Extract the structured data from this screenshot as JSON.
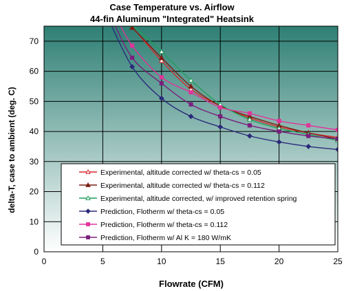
{
  "chart_data": {
    "type": "line",
    "title": "Case Temperature vs. Airflow",
    "subtitle": "44-fin Aluminum \"Integrated\" Heatsink",
    "xlabel": "Flowrate (CFM)",
    "ylabel": "delta-T, case to ambient (deg. C)",
    "xlim": [
      0,
      25
    ],
    "ylim": [
      0,
      75
    ],
    "xticks": [
      "0",
      "5",
      "10",
      "15",
      "20",
      "25"
    ],
    "yticks": [
      "0",
      "10",
      "20",
      "30",
      "40",
      "50",
      "60",
      "70"
    ],
    "grid": true,
    "legend_position": "bottom-center",
    "plot_colors": {
      "top": "#2e7f74",
      "bottom": "#ffffff",
      "grid": "#000000"
    },
    "series": [
      {
        "name": "Experimental, altitude corrected w/ theta-cs   = 0.05",
        "color": "#d9262b",
        "marker": "triangle-open",
        "x": [
          5.8,
          7.5,
          10,
          12.5,
          15,
          17.5,
          20,
          22.5,
          25
        ],
        "y": [
          79,
          74.5,
          63.5,
          54,
          48.5,
          44.5,
          41.5,
          39.5,
          38
        ]
      },
      {
        "name": "Experimental, altitude corrected w/ theta-cs   = 0.112",
        "color": "#7a1e12",
        "marker": "triangle-filled",
        "x": [
          6.2,
          7.5,
          10,
          12.5,
          15,
          17.5,
          20,
          22.5,
          25
        ],
        "y": [
          79,
          74.5,
          64.5,
          55,
          48.5,
          45,
          42,
          39.5,
          37.5
        ]
      },
      {
        "name": "Experimental, altitude corrected, w/ improved retention spring",
        "color": "#1f9e5a",
        "marker": "triangle-open",
        "x": [
          6.5,
          7.5,
          10,
          12.5,
          15,
          17.5,
          20,
          22.5,
          25
        ],
        "y": [
          79,
          75.5,
          66.5,
          57,
          49,
          44,
          41,
          39,
          37
        ]
      },
      {
        "name": "Prediction,  Flotherm w/ theta-cs =  0.05",
        "color": "#2a2a7a",
        "marker": "diamond",
        "x": [
          5.3,
          7.5,
          10,
          12.5,
          15,
          17.5,
          20,
          22.5,
          25
        ],
        "y": [
          79,
          61.5,
          51,
          45,
          41.5,
          38.5,
          36.5,
          35,
          34
        ]
      },
      {
        "name": "Prediction,  Flotherm w/ theta-cs =  0.112",
        "color": "#e0349b",
        "marker": "square",
        "x": [
          6.0,
          7.5,
          10,
          12.5,
          15,
          17.5,
          20,
          22.5,
          25
        ],
        "y": [
          79,
          68.5,
          58,
          53,
          48,
          46,
          43.5,
          42,
          40.5
        ]
      },
      {
        "name": "Prediction,  Flotherm w/  Al K = 180 W/mK",
        "color": "#7a1f7e",
        "marker": "square",
        "x": [
          5.6,
          7.5,
          10,
          12.5,
          15,
          17.5,
          20,
          22.5,
          25
        ],
        "y": [
          79,
          64.5,
          56,
          49,
          45,
          42,
          40,
          38.5,
          37.5
        ]
      }
    ]
  }
}
